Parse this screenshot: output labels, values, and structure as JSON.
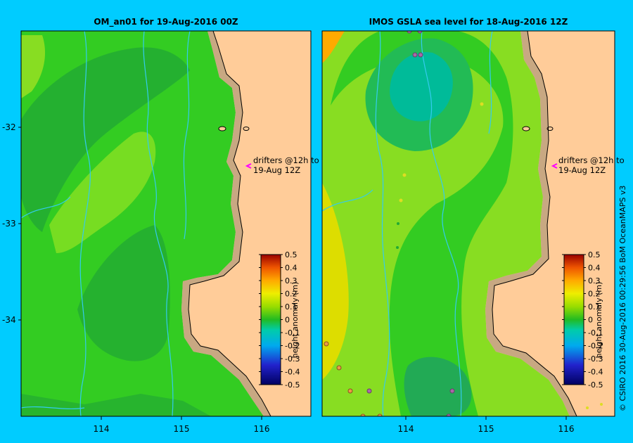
{
  "panels": [
    {
      "title": "OM_an01  for 19-Aug-2016 00Z",
      "annotation": [
        "drifters @12h to",
        "19-Aug 12Z"
      ],
      "colorbar_label": "height anomaly (m)"
    },
    {
      "title": "IMOS GSLA sea level  for 18-Aug-2016 12Z",
      "annotation": [
        "drifters @12h to",
        "19-Aug 12Z"
      ],
      "colorbar_label": "height anomaly (m)"
    }
  ],
  "axes": {
    "lat_ticks": [
      "-32",
      "-33",
      "-34"
    ],
    "lon_ticks": [
      "114",
      "115",
      "116"
    ]
  },
  "colorbar_ticks": [
    "0.5",
    "0.4",
    "0.3",
    "0.2",
    "0.1",
    "0",
    "-0.1",
    "-0.2",
    "-0.3",
    "-0.4",
    "-0.5"
  ],
  "credit": "© CSIRO 2016   30-Aug-2016 00:29:56 BoM OceanMAPS v3",
  "colors": {
    "background": "#00ccff",
    "land": "#ffcc99",
    "shelf": "#c8a882",
    "current_lines": "#33ccee"
  }
}
